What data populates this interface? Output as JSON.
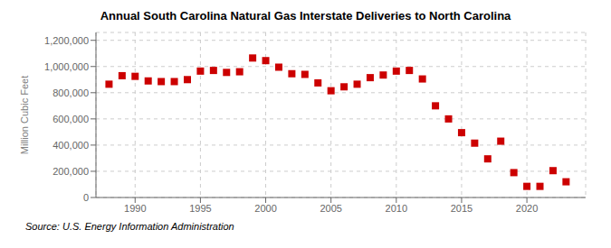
{
  "chart_data": {
    "type": "scatter",
    "title": "Annual South Carolina Natural Gas Interstate Deliveries to North Carolina",
    "ylabel": "Million Cubic Feet",
    "annotations": [
      "Source: U.S. Energy Information Administration"
    ],
    "x": [
      1988,
      1989,
      1990,
      1991,
      1992,
      1993,
      1994,
      1995,
      1996,
      1997,
      1998,
      1999,
      2000,
      2001,
      2002,
      2003,
      2004,
      2005,
      2006,
      2007,
      2008,
      2009,
      2010,
      2011,
      2012,
      2013,
      2014,
      2015,
      2016,
      2017,
      2018,
      2019,
      2020,
      2021,
      2022,
      2023
    ],
    "values": [
      865000,
      930000,
      925000,
      890000,
      885000,
      885000,
      900000,
      965000,
      970000,
      955000,
      960000,
      1065000,
      1045000,
      995000,
      945000,
      940000,
      875000,
      815000,
      845000,
      865000,
      915000,
      935000,
      965000,
      970000,
      905000,
      700000,
      600000,
      495000,
      415000,
      295000,
      430000,
      190000,
      85000,
      85000,
      205000,
      120000
    ],
    "color": "#cc0000",
    "marker": "square",
    "xlim": [
      1987,
      2024.5
    ],
    "xticks": [
      1990,
      1995,
      2000,
      2005,
      2010,
      2015,
      2020
    ],
    "ylim": [
      0,
      1260000
    ],
    "yticks": [
      0,
      {
        "value": 200000,
        "label": "200,000"
      },
      {
        "value": 400000,
        "label": "400,000"
      },
      {
        "value": 600000,
        "label": "600,000"
      },
      {
        "value": 800000,
        "label": "800,000"
      },
      {
        "value": 1000000,
        "label": "1,000,000"
      },
      {
        "value": 1200000,
        "label": "1,200,000"
      }
    ],
    "grid": true
  }
}
